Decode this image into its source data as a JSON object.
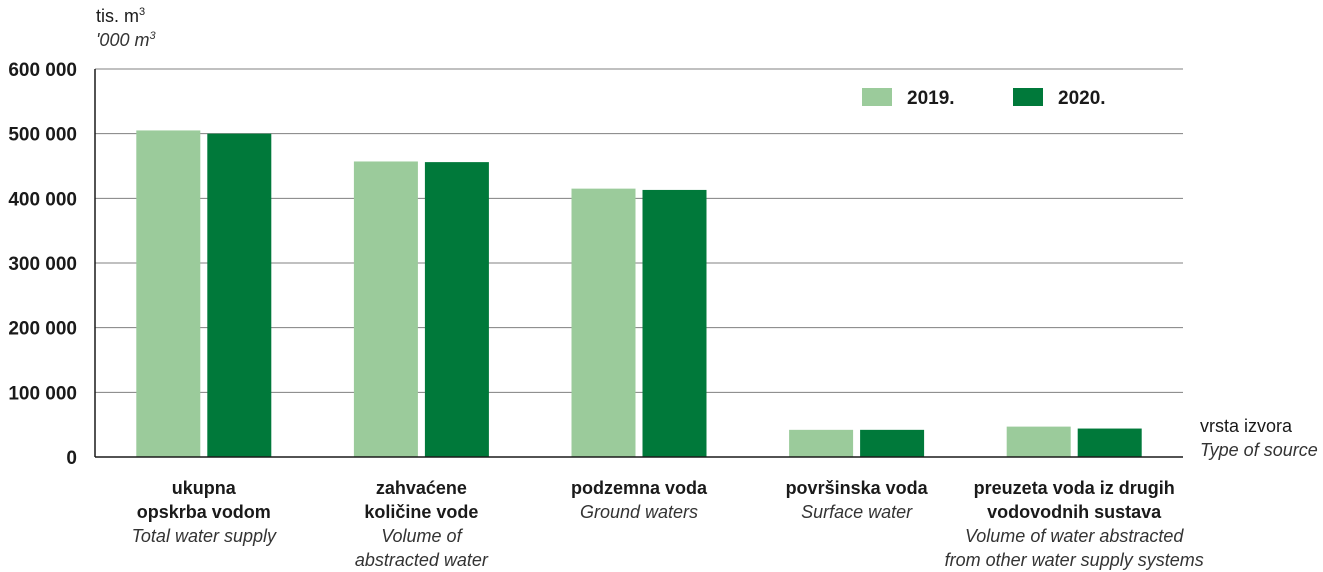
{
  "unit": {
    "hr": "tis. m",
    "hr_sup": "3",
    "en": "'000 m",
    "en_sup": "3"
  },
  "x_axis_title": {
    "hr": "vrsta izvora",
    "en": "Type of source"
  },
  "colors": {
    "2019.": "#9bcb9b",
    "2020.": "#00793a",
    "grid": "#808080"
  },
  "categories": [
    {
      "hr": "ukupna\nopskrba vodom",
      "en": "Total water supply"
    },
    {
      "hr": "zahvaćene\nkoličine vode",
      "en": "Volume of\nabstracted water"
    },
    {
      "hr": "podzemna  voda",
      "en": "Ground waters"
    },
    {
      "hr": "površinska voda",
      "en": "Surface water"
    },
    {
      "hr": "preuzeta voda iz drugih\nvodovodnih sustava",
      "en": "Volume of water  abstracted\nfrom other water supply systems"
    }
  ],
  "chart_data": {
    "type": "bar",
    "categories": [
      "ukupna opskrba vodom",
      "zahvaćene količine vode",
      "podzemna voda",
      "površinska voda",
      "preuzeta voda iz drugih vodovodnih sustava"
    ],
    "series": [
      {
        "name": "2019.",
        "values": [
          505000,
          457000,
          415000,
          42000,
          47000
        ]
      },
      {
        "name": "2020.",
        "values": [
          500000,
          456000,
          413000,
          42000,
          44000
        ]
      }
    ],
    "ylim": [
      0,
      600000
    ],
    "yticks": [
      0,
      100000,
      200000,
      300000,
      400000,
      500000,
      600000
    ],
    "ytick_labels": [
      "0",
      "100 000",
      "200 000",
      "300 000",
      "400 000",
      "500 000",
      "600 000"
    ],
    "grid": true,
    "legend": "top-right"
  }
}
